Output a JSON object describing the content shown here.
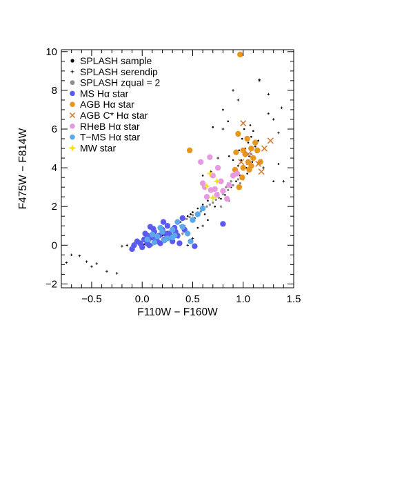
{
  "chart_data": {
    "type": "scatter",
    "xlabel": "F110W − F160W",
    "ylabel": "F475W − F814W",
    "xlim": [
      -0.8,
      1.5
    ],
    "ylim": [
      -2.2,
      10.1
    ],
    "xticks": [
      -0.5,
      0.0,
      0.5,
      1.0,
      1.5
    ],
    "xtick_labels": [
      "−0.5",
      "0.0",
      "0.5",
      "1.0",
      "1.5"
    ],
    "yticks": [
      -2,
      0,
      2,
      4,
      6,
      8,
      10
    ],
    "ytick_labels": [
      "−2",
      "0",
      "2",
      "4",
      "6",
      "8",
      "10"
    ],
    "legend_position": "top-left",
    "series": [
      {
        "name": "SPLASH sample",
        "marker": "dot",
        "color": "#000000",
        "points": [
          [
            0.05,
            0.2
          ],
          [
            0.1,
            0.3
          ],
          [
            0.15,
            0.4
          ],
          [
            0.2,
            0.5
          ],
          [
            0.25,
            0.7
          ],
          [
            0.3,
            0.9
          ],
          [
            0.35,
            1.1
          ],
          [
            0.4,
            1.3
          ],
          [
            0.45,
            1.5
          ],
          [
            0.5,
            1.7
          ],
          [
            0.55,
            1.9
          ],
          [
            0.6,
            2.1
          ],
          [
            0.65,
            2.3
          ],
          [
            0.7,
            2.5
          ],
          [
            0.75,
            2.7
          ],
          [
            0.8,
            2.9
          ],
          [
            0.85,
            3.2
          ],
          [
            0.9,
            3.5
          ],
          [
            0.92,
            3.8
          ],
          [
            0.95,
            4.1
          ],
          [
            0.98,
            4.4
          ],
          [
            1.0,
            4.7
          ],
          [
            1.02,
            5.0
          ],
          [
            1.05,
            5.3
          ],
          [
            1.08,
            5.6
          ],
          [
            1.1,
            5.9
          ],
          [
            0.97,
            3.6
          ],
          [
            1.03,
            4.0
          ],
          [
            1.06,
            4.6
          ],
          [
            1.12,
            5.1
          ],
          [
            0.88,
            3.0
          ],
          [
            0.93,
            3.3
          ],
          [
            0.99,
            5.5
          ],
          [
            1.01,
            6.0
          ],
          [
            1.07,
            6.2
          ],
          [
            0.96,
            4.9
          ],
          [
            1.04,
            3.7
          ],
          [
            1.09,
            4.3
          ],
          [
            0.82,
            2.6
          ],
          [
            0.78,
            2.4
          ],
          [
            0.72,
            2.0
          ],
          [
            0.62,
            1.6
          ],
          [
            0.52,
            1.4
          ],
          [
            0.42,
            1.0
          ],
          [
            0.32,
            0.6
          ],
          [
            0.22,
            0.35
          ],
          [
            0.12,
            0.15
          ],
          [
            0.02,
            0.05
          ],
          [
            0.18,
            0.6
          ],
          [
            0.28,
            0.8
          ],
          [
            0.38,
            1.2
          ],
          [
            0.48,
            1.6
          ],
          [
            1.15,
            5.4
          ],
          [
            1.13,
            4.8
          ],
          [
            0.94,
            5.8
          ],
          [
            1.0,
            3.4
          ],
          [
            0.9,
            4.4
          ],
          [
            1.06,
            5.0
          ],
          [
            0.86,
            4.6
          ],
          [
            1.18,
            4.4
          ],
          [
            0.8,
            7.0
          ],
          [
            0.85,
            6.4
          ],
          [
            1.3,
            3.3
          ],
          [
            1.35,
            4.2
          ],
          [
            1.25,
            6.8
          ],
          [
            1.16,
            8.5
          ],
          [
            0.6,
            3.6
          ],
          [
            0.7,
            6.1
          ],
          [
            0.55,
            0.9
          ],
          [
            0.65,
            1.3
          ]
        ]
      },
      {
        "name": "SPLASH serendip",
        "marker": "plus",
        "color": "#000000",
        "points": [
          [
            -0.75,
            -0.9
          ],
          [
            -0.7,
            -0.5
          ],
          [
            -0.62,
            -0.55
          ],
          [
            -0.55,
            -0.85
          ],
          [
            -0.5,
            -1.1
          ],
          [
            -0.45,
            -0.95
          ],
          [
            -0.35,
            -1.35
          ],
          [
            -0.25,
            -1.45
          ],
          [
            -0.2,
            -0.05
          ],
          [
            -0.15,
            0.0
          ],
          [
            1.16,
            8.55
          ],
          [
            0.9,
            8.0
          ],
          [
            1.25,
            7.8
          ],
          [
            1.3,
            6.5
          ],
          [
            1.35,
            5.8
          ],
          [
            1.4,
            3.3
          ],
          [
            0.8,
            6.0
          ],
          [
            0.75,
            4.5
          ],
          [
            0.68,
            3.8
          ],
          [
            0.5,
            0.35
          ],
          [
            0.45,
            0.0
          ],
          [
            0.6,
            1.0
          ],
          [
            1.38,
            7.1
          ],
          [
            0.95,
            7.5
          ],
          [
            1.2,
            4.0
          ]
        ]
      },
      {
        "name": "SPLASH zqual = 2",
        "marker": "dot",
        "color": "#8c8c8c",
        "points": [
          [
            0.0,
            0.1
          ],
          [
            0.08,
            0.25
          ],
          [
            0.16,
            0.45
          ],
          [
            0.24,
            0.65
          ],
          [
            0.3,
            0.85
          ],
          [
            0.38,
            1.0
          ],
          [
            0.44,
            1.35
          ],
          [
            0.5,
            1.55
          ],
          [
            0.58,
            1.75
          ],
          [
            0.64,
            2.0
          ],
          [
            0.7,
            2.2
          ],
          [
            0.76,
            2.45
          ],
          [
            0.8,
            2.65
          ],
          [
            0.85,
            2.85
          ],
          [
            0.9,
            3.1
          ],
          [
            0.95,
            3.4
          ],
          [
            1.0,
            3.9
          ],
          [
            1.04,
            4.2
          ],
          [
            1.08,
            4.7
          ],
          [
            0.73,
            2.35
          ],
          [
            0.67,
            2.1
          ],
          [
            0.61,
            1.9
          ],
          [
            0.55,
            1.65
          ],
          [
            0.47,
            1.45
          ],
          [
            0.83,
            3.0
          ],
          [
            0.88,
            3.3
          ],
          [
            0.92,
            3.6
          ],
          [
            0.97,
            3.2
          ],
          [
            0.78,
            2.0
          ],
          [
            0.86,
            2.3
          ],
          [
            0.4,
            0.6
          ],
          [
            0.36,
            0.4
          ],
          [
            0.1,
            0.0
          ],
          [
            0.2,
            0.3
          ]
        ]
      },
      {
        "name": "MS Hα star",
        "marker": "dot-large",
        "color": "#5b5bf0",
        "points": [
          [
            -0.1,
            -0.2
          ],
          [
            -0.08,
            0.0
          ],
          [
            -0.05,
            0.2
          ],
          [
            -0.02,
            0.1
          ],
          [
            0.0,
            -0.1
          ],
          [
            0.02,
            0.3
          ],
          [
            0.05,
            0.5
          ],
          [
            0.07,
            0.0
          ],
          [
            0.1,
            0.4
          ],
          [
            0.12,
            0.7
          ],
          [
            0.15,
            0.2
          ],
          [
            0.17,
            0.5
          ],
          [
            0.2,
            0.8
          ],
          [
            0.22,
            0.3
          ],
          [
            0.25,
            1.0
          ],
          [
            0.27,
            0.6
          ],
          [
            0.3,
            0.2
          ],
          [
            0.32,
            0.9
          ],
          [
            0.35,
            0.5
          ],
          [
            0.37,
            0.1
          ],
          [
            0.4,
            1.4
          ],
          [
            0.42,
            0.8
          ],
          [
            0.08,
            0.95
          ],
          [
            0.18,
            0.1
          ],
          [
            0.28,
            0.4
          ],
          [
            0.05,
            0.1
          ],
          [
            0.13,
            0.3
          ],
          [
            0.23,
            0.6
          ],
          [
            0.33,
            0.7
          ],
          [
            0.03,
            0.6
          ],
          [
            0.21,
            1.2
          ],
          [
            0.11,
            0.85
          ],
          [
            0.52,
            -0.05
          ],
          [
            0.8,
            1.1
          ]
        ]
      },
      {
        "name": "AGB Hα star",
        "marker": "dot-large",
        "color": "#e8961e",
        "points": [
          [
            0.97,
            9.85
          ],
          [
            0.47,
            4.9
          ],
          [
            0.93,
            4.8
          ],
          [
            0.95,
            5.75
          ],
          [
            1.0,
            4.0
          ],
          [
            1.05,
            4.3
          ],
          [
            1.08,
            5.0
          ],
          [
            1.1,
            4.5
          ],
          [
            1.12,
            5.3
          ],
          [
            0.99,
            3.5
          ],
          [
            1.02,
            4.7
          ],
          [
            1.06,
            3.9
          ],
          [
            1.14,
            4.9
          ],
          [
            0.96,
            3.0
          ],
          [
            1.04,
            5.5
          ],
          [
            1.08,
            4.1
          ],
          [
            0.92,
            3.9
          ],
          [
            1.17,
            4.3
          ],
          [
            1.0,
            4.9
          ]
        ]
      },
      {
        "name": "AGB C* Hα star",
        "marker": "x",
        "color": "#d27e3a",
        "points": [
          [
            1.0,
            6.3
          ],
          [
            1.27,
            5.4
          ],
          [
            1.15,
            4.2
          ],
          [
            1.21,
            5.0
          ],
          [
            1.05,
            4.7
          ],
          [
            1.18,
            3.8
          ],
          [
            0.98,
            4.3
          ]
        ]
      },
      {
        "name": "RHeB Hα star",
        "marker": "dot-large",
        "color": "#e89ae0",
        "points": [
          [
            0.58,
            4.3
          ],
          [
            0.67,
            4.55
          ],
          [
            0.7,
            3.6
          ],
          [
            0.75,
            4.0
          ],
          [
            0.62,
            3.0
          ],
          [
            0.68,
            2.85
          ],
          [
            0.74,
            2.6
          ],
          [
            0.8,
            2.8
          ],
          [
            0.86,
            3.1
          ],
          [
            0.64,
            2.5
          ],
          [
            0.72,
            2.9
          ],
          [
            0.78,
            3.3
          ],
          [
            0.9,
            3.6
          ],
          [
            0.84,
            2.4
          ],
          [
            0.6,
            3.2
          ],
          [
            0.94,
            3.7
          ]
        ]
      },
      {
        "name": "T−MS Hα star",
        "marker": "dot-large",
        "color": "#5ba8ec",
        "points": [
          [
            0.05,
            0.3
          ],
          [
            0.1,
            0.55
          ],
          [
            0.15,
            0.45
          ],
          [
            0.2,
            0.7
          ],
          [
            0.25,
            0.35
          ],
          [
            0.3,
            0.8
          ],
          [
            0.35,
            1.2
          ],
          [
            0.4,
            0.95
          ],
          [
            0.45,
            0.6
          ],
          [
            0.5,
            1.3
          ],
          [
            0.55,
            1.6
          ],
          [
            0.6,
            1.9
          ],
          [
            0.12,
            0.15
          ],
          [
            0.22,
            0.25
          ],
          [
            0.32,
            0.5
          ],
          [
            0.48,
            0.2
          ],
          [
            0.3,
            0.4
          ],
          [
            0.18,
            0.9
          ]
        ]
      },
      {
        "name": "MW star",
        "marker": "star",
        "color": "#f5e020",
        "points": [
          [
            0.67,
            3.7
          ],
          [
            0.74,
            3.3
          ],
          [
            0.7,
            2.45
          ],
          [
            0.64,
            3.05
          ]
        ]
      }
    ]
  }
}
